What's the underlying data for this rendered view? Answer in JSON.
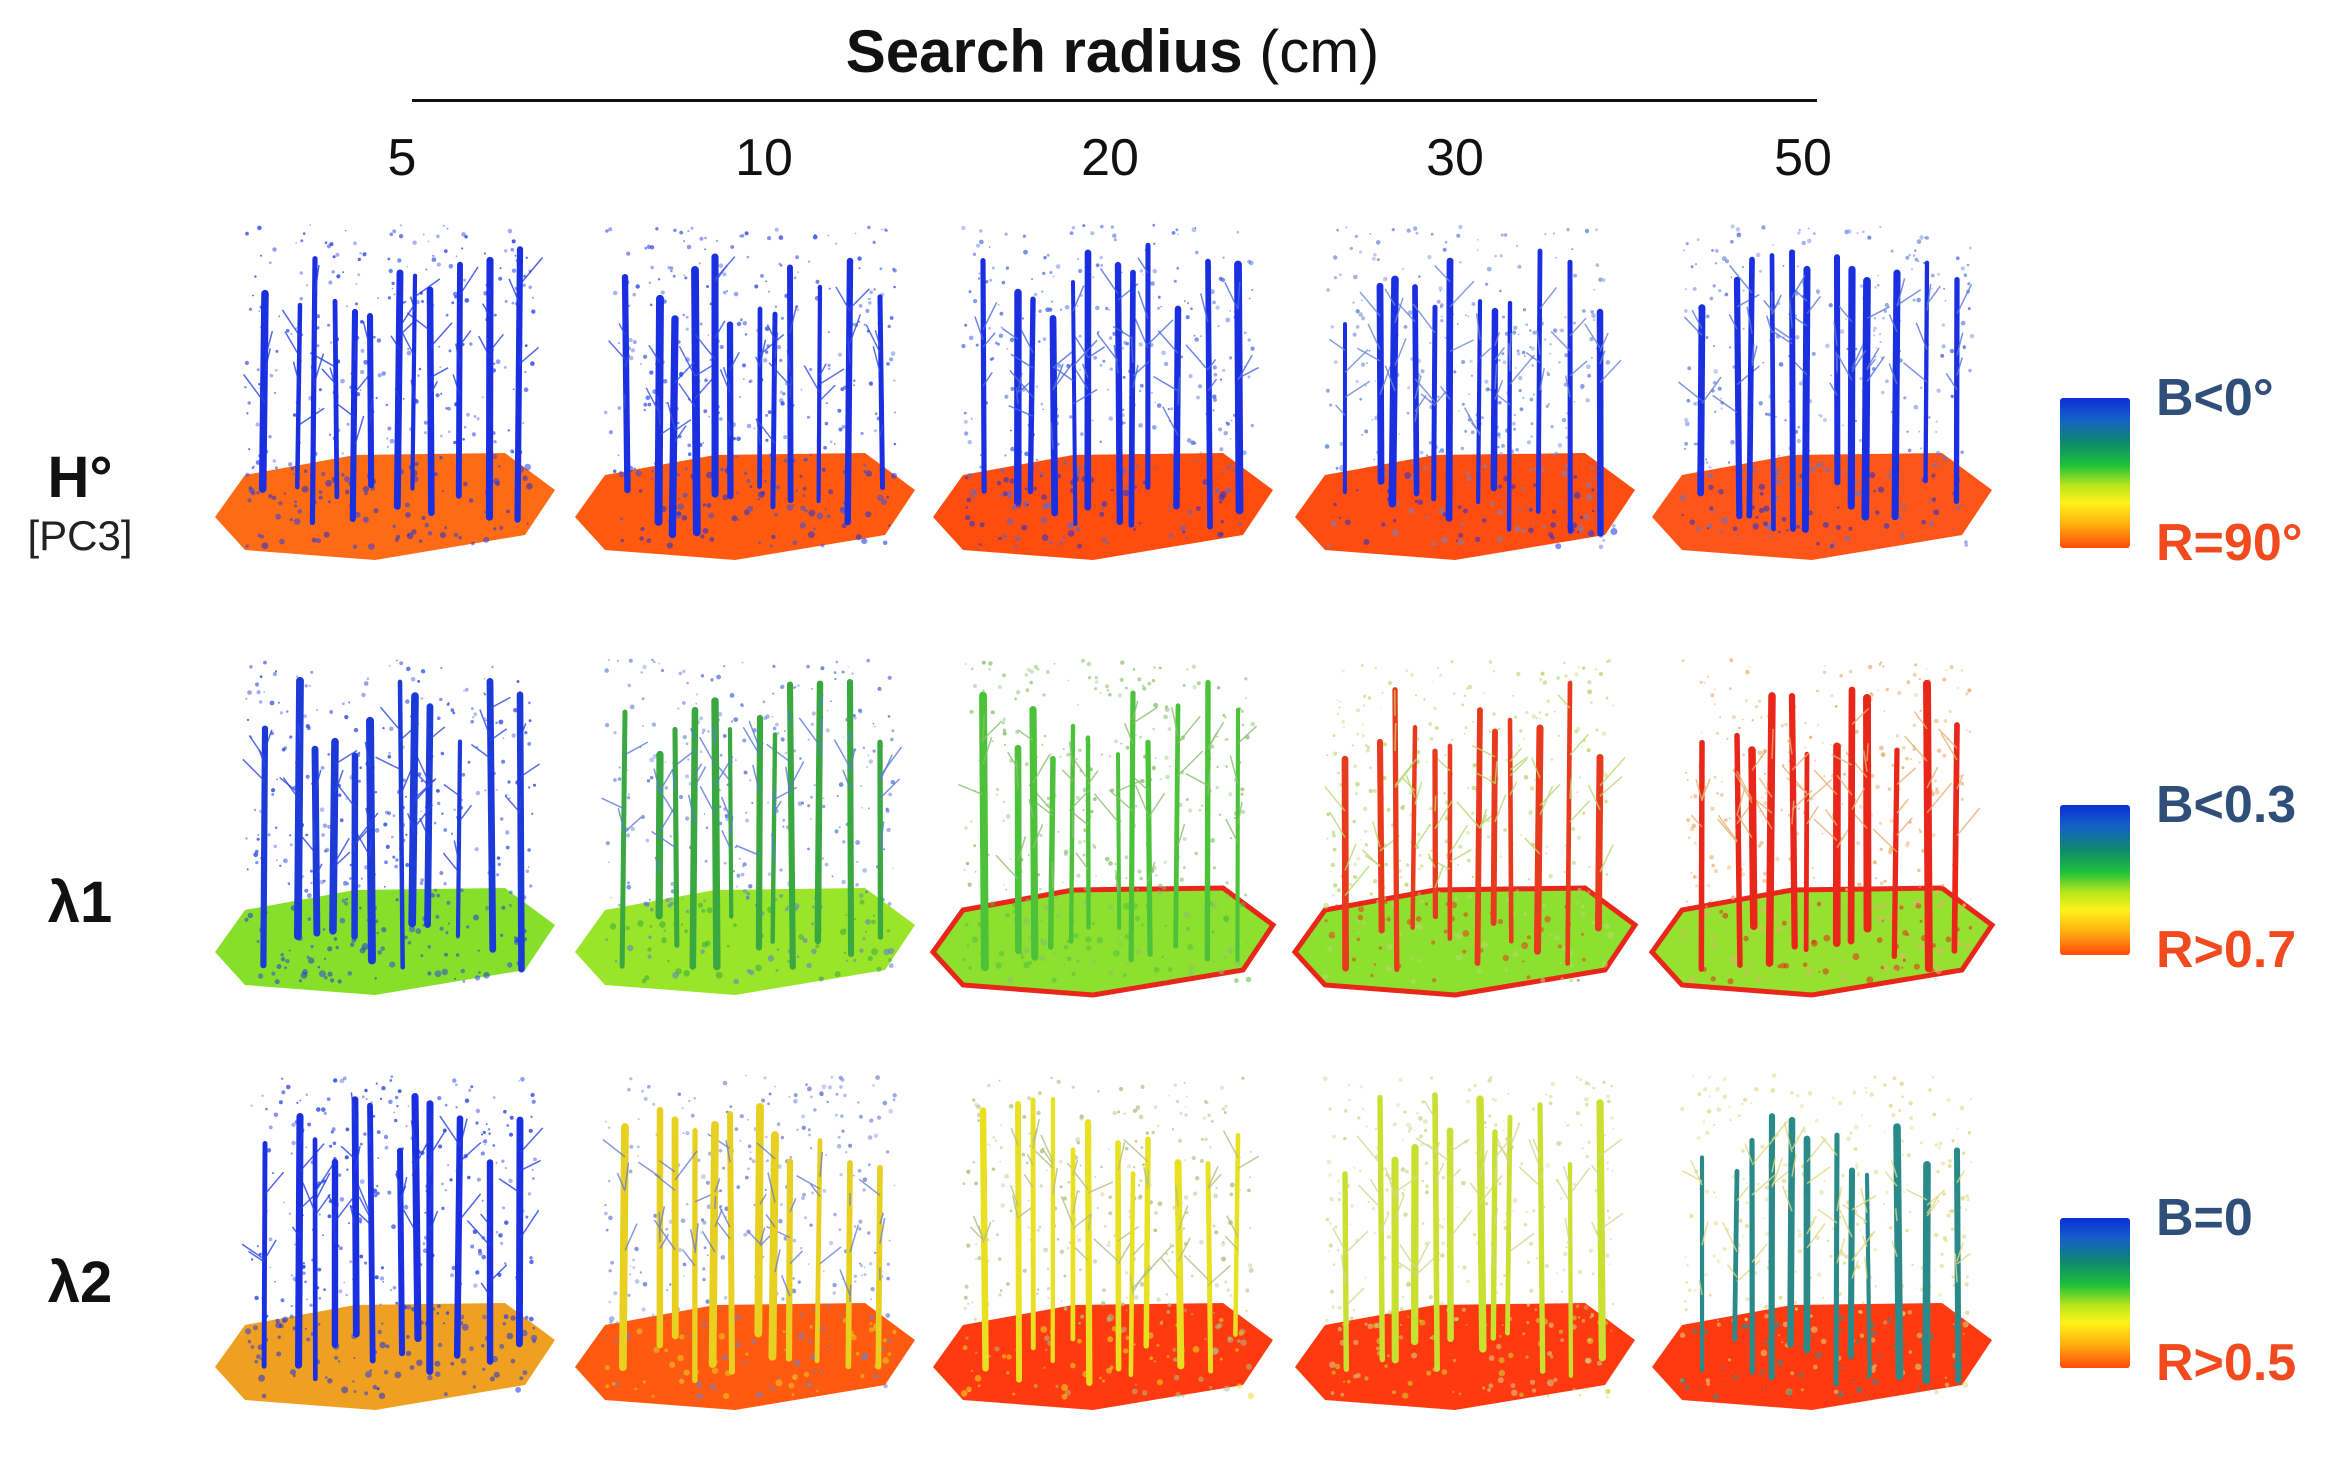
{
  "header": {
    "title_bold": "Search radius",
    "title_unit": "(cm)"
  },
  "columns": [
    "5",
    "10",
    "20",
    "30",
    "50"
  ],
  "rows": [
    {
      "label": "H°",
      "sublabel": "[PC3]",
      "legend": {
        "top": "B<0°",
        "bottom": "R=90°"
      },
      "trunk_colors": [
        "#1a2fe0",
        "#1a2fe0",
        "#1a2fe0",
        "#1a2fe0",
        "#1a2fe0"
      ],
      "canopy_colors": [
        "#2440e8",
        "#3550e6",
        "#4a6ae0",
        "#6a86d6",
        "#5a76da"
      ],
      "ground_colors": [
        "#ff6a14",
        "#ff5a10",
        "#ff4d10",
        "#ff4d12",
        "#ff5518"
      ]
    },
    {
      "label": "λ1",
      "sublabel": "",
      "legend": {
        "top": "B<0.3",
        "bottom": "R>0.7"
      },
      "trunk_colors": [
        "#1c3ad8",
        "#3aa840",
        "#4cc23a",
        "#e83a1c",
        "#e8261a"
      ],
      "canopy_colors": [
        "#2c48e0",
        "#5a7ad8",
        "#8ac070",
        "#b8d870",
        "#e8b070"
      ],
      "ground_colors": [
        "#86e02a",
        "#9ae42a",
        "#8ee030",
        "#8ee030",
        "#96e030"
      ]
    },
    {
      "label": "λ2",
      "sublabel": "",
      "legend": {
        "top": "B=0",
        "bottom": "R>0.5"
      },
      "trunk_colors": [
        "#1a2fe0",
        "#e8d020",
        "#e8e020",
        "#c8e030",
        "#2a8a8a"
      ],
      "canopy_colors": [
        "#2440e8",
        "#6a80d0",
        "#b0c080",
        "#d0d890",
        "#e0d880"
      ],
      "ground_colors": [
        "#f0a020",
        "#ff5a10",
        "#ff3a10",
        "#ff3a10",
        "#ff3a10"
      ]
    }
  ]
}
